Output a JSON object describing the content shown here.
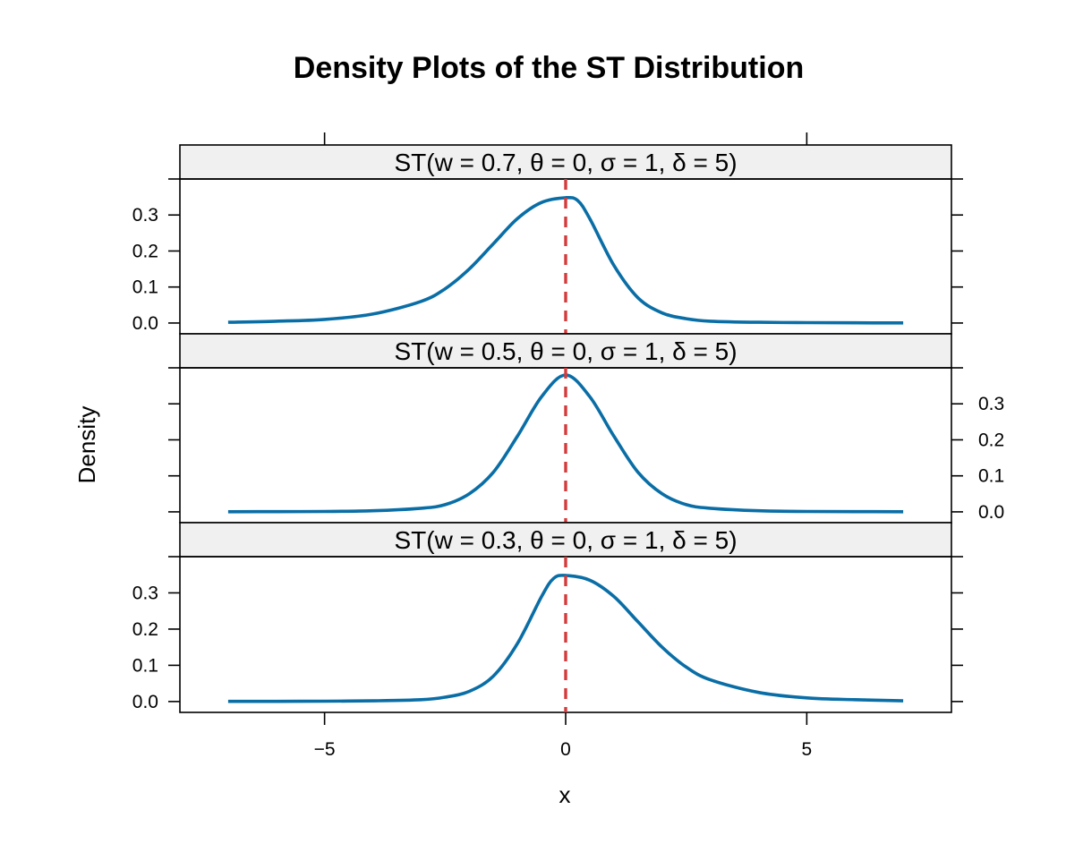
{
  "chart_data": {
    "type": "line",
    "title": "Density Plots of the ST Distribution",
    "xlabel": "x",
    "ylabel": "Density",
    "xlim": [
      -8,
      8
    ],
    "ylim": [
      -0.03,
      0.4
    ],
    "x_ticks": [
      -5,
      0,
      5
    ],
    "x_tick_labels": [
      "−5",
      "0",
      "5"
    ],
    "y_ticks": [
      0.0,
      0.1,
      0.2,
      0.3
    ],
    "y_tick_labels": [
      "0.0",
      "0.1",
      "0.2",
      "0.3"
    ],
    "grid": false,
    "legend": "none",
    "colors": {
      "line": "#0a6ea6",
      "reference_line": "#d43b3b",
      "strip_background": "#f0f0f0",
      "frame": "#000000"
    },
    "reference_line": {
      "x": 0,
      "style": "dashed"
    },
    "panels": [
      {
        "strip": "ST(w = 0.7, θ = 0, σ = 1, δ = 5)",
        "y_axis_side": "left",
        "x": [
          -7,
          -6,
          -5,
          -4,
          -3,
          -2.5,
          -2,
          -1.5,
          -1,
          -0.5,
          0,
          0.25,
          0.5,
          1,
          1.5,
          2,
          2.5,
          3,
          4,
          5,
          6,
          7
        ],
        "values": [
          0.002,
          0.005,
          0.01,
          0.025,
          0.06,
          0.095,
          0.15,
          0.22,
          0.29,
          0.335,
          0.348,
          0.34,
          0.29,
          0.16,
          0.07,
          0.028,
          0.012,
          0.005,
          0.002,
          0.001,
          0.0005,
          0.0003
        ]
      },
      {
        "strip": "ST(w = 0.5, θ = 0, σ = 1, δ = 5)",
        "y_axis_side": "right",
        "x": [
          -7,
          -6,
          -5,
          -4,
          -3,
          -2.5,
          -2,
          -1.5,
          -1,
          -0.5,
          0,
          0.5,
          1,
          1.5,
          2,
          2.5,
          3,
          4,
          5,
          6,
          7
        ],
        "values": [
          0.0003,
          0.0006,
          0.001,
          0.003,
          0.01,
          0.02,
          0.05,
          0.11,
          0.21,
          0.32,
          0.38,
          0.32,
          0.21,
          0.11,
          0.05,
          0.02,
          0.01,
          0.003,
          0.001,
          0.0006,
          0.0003
        ]
      },
      {
        "strip": "ST(w = 0.3, θ = 0, σ = 1, δ = 5)",
        "y_axis_side": "left",
        "x": [
          -7,
          -6,
          -5,
          -4,
          -3,
          -2.5,
          -2,
          -1.5,
          -1,
          -0.5,
          -0.25,
          0,
          0.5,
          1,
          1.5,
          2,
          2.5,
          3,
          4,
          5,
          6,
          7
        ],
        "values": [
          0.0003,
          0.0005,
          0.001,
          0.002,
          0.005,
          0.012,
          0.028,
          0.07,
          0.16,
          0.29,
          0.34,
          0.348,
          0.335,
          0.29,
          0.22,
          0.15,
          0.095,
          0.06,
          0.025,
          0.01,
          0.005,
          0.002
        ]
      }
    ]
  }
}
